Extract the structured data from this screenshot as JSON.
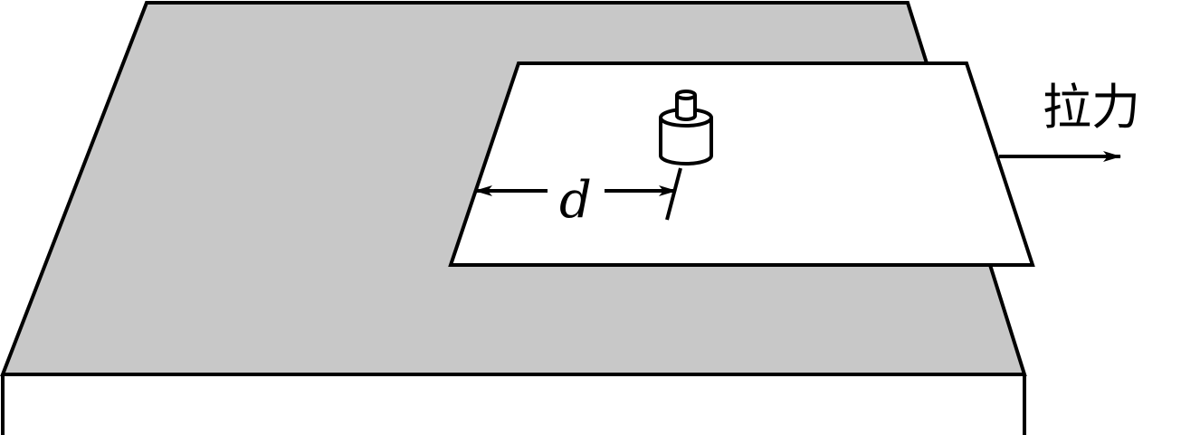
{
  "diagram": {
    "distance_label": "d",
    "pull_label": "拉力"
  },
  "colors": {
    "table_top": "#c8c8c8",
    "paper": "#ffffff",
    "stroke": "#000000"
  }
}
